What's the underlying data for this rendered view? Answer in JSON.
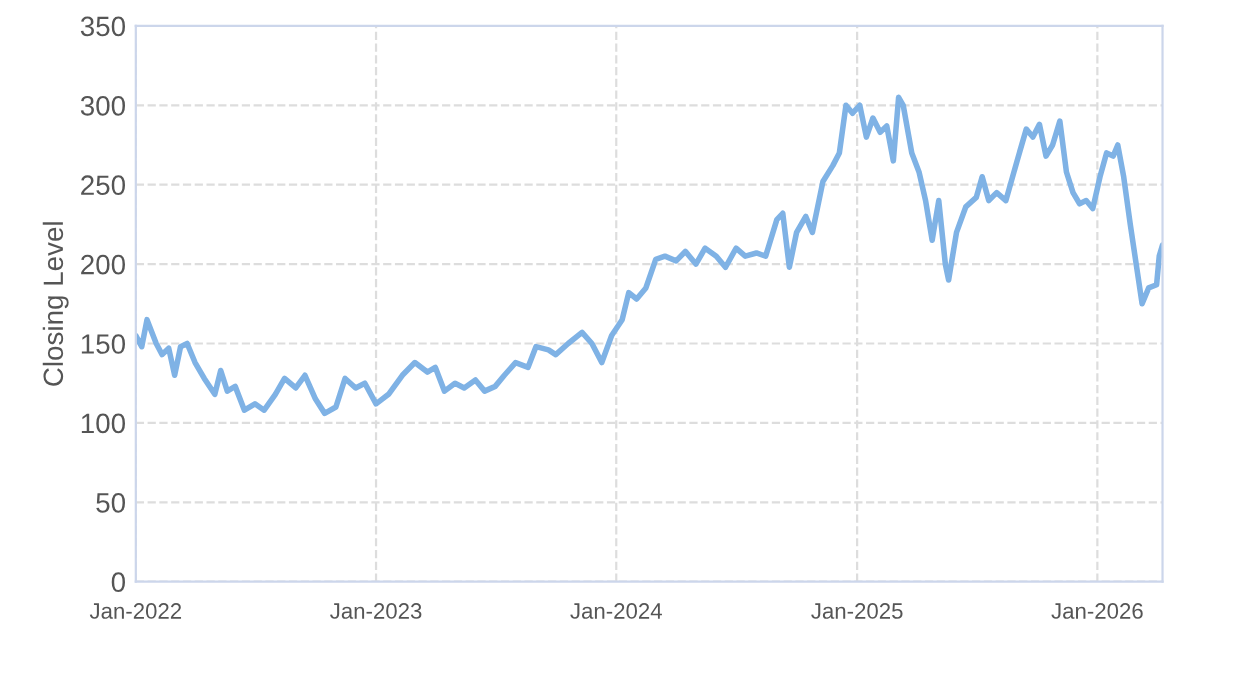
{
  "chart_data": {
    "type": "line",
    "ylabel": "Closing Level",
    "x": [
      "2022-01-01",
      "2022-01-10",
      "2022-01-18",
      "2022-02-01",
      "2022-02-10",
      "2022-02-20",
      "2022-03-01",
      "2022-03-10",
      "2022-03-20",
      "2022-04-01",
      "2022-04-15",
      "2022-05-01",
      "2022-05-10",
      "2022-05-20",
      "2022-06-01",
      "2022-06-15",
      "2022-07-01",
      "2022-07-15",
      "2022-08-01",
      "2022-08-15",
      "2022-09-01",
      "2022-09-15",
      "2022-10-01",
      "2022-10-15",
      "2022-11-01",
      "2022-11-15",
      "2022-12-01",
      "2022-12-15",
      "2023-01-01",
      "2023-01-20",
      "2023-02-10",
      "2023-03-01",
      "2023-03-20",
      "2023-04-01",
      "2023-04-15",
      "2023-05-01",
      "2023-05-15",
      "2023-06-01",
      "2023-06-15",
      "2023-07-01",
      "2023-07-15",
      "2023-08-01",
      "2023-08-20",
      "2023-09-01",
      "2023-09-20",
      "2023-10-01",
      "2023-10-20",
      "2023-11-10",
      "2023-11-25",
      "2023-12-10",
      "2023-12-25",
      "2024-01-10",
      "2024-01-20",
      "2024-02-01",
      "2024-02-15",
      "2024-03-01",
      "2024-03-15",
      "2024-04-01",
      "2024-04-15",
      "2024-05-01",
      "2024-05-15",
      "2024-06-01",
      "2024-06-15",
      "2024-07-01",
      "2024-07-15",
      "2024-08-01",
      "2024-08-15",
      "2024-09-01",
      "2024-09-10",
      "2024-09-20",
      "2024-10-01",
      "2024-10-15",
      "2024-10-25",
      "2024-11-10",
      "2024-11-25",
      "2024-12-05",
      "2024-12-15",
      "2024-12-25",
      "2025-01-05",
      "2025-01-15",
      "2025-01-25",
      "2025-02-05",
      "2025-02-15",
      "2025-02-25",
      "2025-03-05",
      "2025-03-12",
      "2025-03-25",
      "2025-04-05",
      "2025-04-15",
      "2025-04-25",
      "2025-05-05",
      "2025-05-15",
      "2025-05-20",
      "2025-06-01",
      "2025-06-15",
      "2025-07-01",
      "2025-07-10",
      "2025-07-20",
      "2025-08-01",
      "2025-08-15",
      "2025-09-01",
      "2025-09-15",
      "2025-09-25",
      "2025-10-05",
      "2025-10-15",
      "2025-10-25",
      "2025-11-05",
      "2025-11-15",
      "2025-11-25",
      "2025-12-05",
      "2025-12-15",
      "2025-12-25",
      "2026-01-05",
      "2026-01-15",
      "2026-01-25",
      "2026-02-01",
      "2026-02-10",
      "2026-02-20",
      "2026-03-01",
      "2026-03-10",
      "2026-03-20",
      "2026-04-01",
      "2026-04-05",
      "2026-04-10"
    ],
    "series": [
      {
        "color": "#7fb2e5",
        "values": [
          155,
          148,
          165,
          150,
          143,
          147,
          130,
          148,
          150,
          138,
          128,
          118,
          133,
          120,
          123,
          108,
          112,
          108,
          118,
          128,
          122,
          130,
          115,
          106,
          110,
          128,
          122,
          125,
          112,
          118,
          130,
          138,
          132,
          135,
          120,
          125,
          122,
          127,
          120,
          123,
          130,
          138,
          135,
          148,
          146,
          143,
          150,
          157,
          150,
          138,
          155,
          165,
          182,
          178,
          185,
          203,
          205,
          202,
          208,
          200,
          210,
          205,
          198,
          210,
          205,
          207,
          205,
          228,
          232,
          198,
          220,
          230,
          220,
          252,
          262,
          270,
          300,
          295,
          300,
          280,
          292,
          283,
          287,
          265,
          305,
          300,
          270,
          258,
          240,
          215,
          240,
          200,
          190,
          220,
          236,
          242,
          255,
          240,
          245,
          240,
          265,
          285,
          280,
          288,
          268,
          275,
          290,
          258,
          245,
          238,
          240,
          235,
          255,
          270,
          268,
          275,
          255,
          225,
          200,
          175,
          185,
          187,
          205,
          212
        ]
      }
    ],
    "xlim": [
      "2022-01-01",
      "2026-04-10"
    ],
    "xticks": [
      {
        "value": "2022-01-01",
        "label": "Jan-2022"
      },
      {
        "value": "2023-01-01",
        "label": "Jan-2023"
      },
      {
        "value": "2024-01-01",
        "label": "Jan-2024"
      },
      {
        "value": "2025-01-01",
        "label": "Jan-2025"
      },
      {
        "value": "2026-01-01",
        "label": "Jan-2026"
      }
    ],
    "ylim": [
      0,
      350
    ],
    "yticks": [
      0,
      50,
      100,
      150,
      200,
      250,
      300,
      350
    ],
    "grid": true,
    "legend": false,
    "marker": "none",
    "line_style": "solid"
  }
}
